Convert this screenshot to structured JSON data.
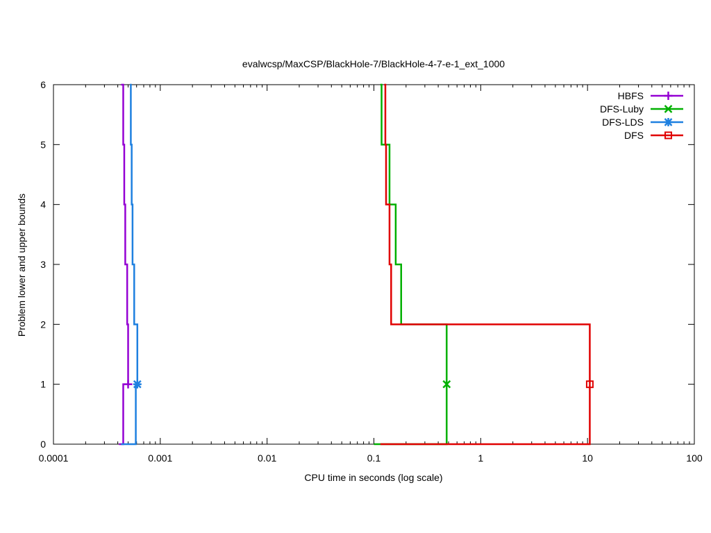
{
  "chart_data": {
    "type": "line",
    "title": "evalwcsp/MaxCSP/BlackHole-7/BlackHole-4-7-e-1_ext_1000",
    "xlabel": "CPU time in seconds (log scale)",
    "ylabel": "Problem lower and upper bounds",
    "xscale": "log",
    "xlim": [
      0.0001,
      100
    ],
    "ylim": [
      0,
      6
    ],
    "x_ticks": [
      0.0001,
      0.001,
      0.01,
      0.1,
      1,
      10,
      100
    ],
    "x_tick_labels": [
      "0.0001",
      "0.001",
      "0.01",
      "0.1",
      "1",
      "10",
      "100"
    ],
    "y_ticks": [
      0,
      1,
      2,
      3,
      4,
      5,
      6
    ],
    "y_tick_labels": [
      "0",
      "1",
      "2",
      "3",
      "4",
      "5",
      "6"
    ],
    "grid": false,
    "legend_position": "top-right",
    "series": [
      {
        "name": "HBFS",
        "color": "#9400d3",
        "marker": "plus",
        "upper": [
          [
            0.00043,
            6
          ],
          [
            0.00045,
            5
          ],
          [
            0.00046,
            4
          ],
          [
            0.00047,
            3
          ],
          [
            0.00049,
            2
          ],
          [
            0.0005,
            1
          ]
        ],
        "lower": [
          [
            0.00041,
            0
          ],
          [
            0.00045,
            1
          ],
          [
            0.0005,
            1
          ]
        ],
        "final": [
          0.0005,
          1
        ]
      },
      {
        "name": "DFS-Luby",
        "color": "#00b000",
        "marker": "x",
        "upper": [
          [
            0.115,
            6
          ],
          [
            0.118,
            5
          ],
          [
            0.14,
            4
          ],
          [
            0.16,
            3
          ],
          [
            0.18,
            2
          ],
          [
            0.48,
            1
          ]
        ],
        "lower": [
          [
            0.1,
            0
          ],
          [
            0.48,
            1
          ]
        ],
        "final": [
          0.48,
          1
        ]
      },
      {
        "name": "DFS-LDS",
        "color": "#1e80e0",
        "marker": "star",
        "upper": [
          [
            0.00052,
            6
          ],
          [
            0.00053,
            5
          ],
          [
            0.00054,
            4
          ],
          [
            0.00055,
            3
          ],
          [
            0.00057,
            2
          ],
          [
            0.00061,
            1
          ]
        ],
        "lower": [
          [
            0.00043,
            0
          ],
          [
            0.00059,
            1
          ],
          [
            0.00061,
            1
          ]
        ],
        "final": [
          0.00061,
          1
        ]
      },
      {
        "name": "DFS",
        "color": "#e00000",
        "marker": "square",
        "upper": [
          [
            0.125,
            6
          ],
          [
            0.128,
            5
          ],
          [
            0.13,
            4
          ],
          [
            0.14,
            3
          ],
          [
            0.145,
            2
          ],
          [
            10.5,
            1
          ]
        ],
        "lower": [
          [
            0.115,
            0
          ],
          [
            10.5,
            1
          ]
        ],
        "final": [
          10.5,
          1
        ]
      }
    ]
  }
}
